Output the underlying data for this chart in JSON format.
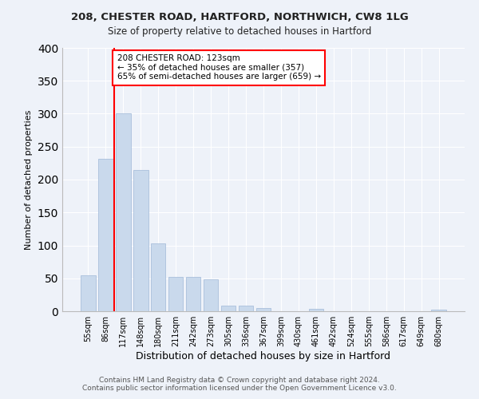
{
  "title1": "208, CHESTER ROAD, HARTFORD, NORTHWICH, CW8 1LG",
  "title2": "Size of property relative to detached houses in Hartford",
  "xlabel": "Distribution of detached houses by size in Hartford",
  "ylabel": "Number of detached properties",
  "bar_color": "#c9d9ec",
  "bar_edge_color": "#a0b8d8",
  "categories": [
    "55sqm",
    "86sqm",
    "117sqm",
    "148sqm",
    "180sqm",
    "211sqm",
    "242sqm",
    "273sqm",
    "305sqm",
    "336sqm",
    "367sqm",
    "399sqm",
    "430sqm",
    "461sqm",
    "492sqm",
    "524sqm",
    "555sqm",
    "586sqm",
    "617sqm",
    "649sqm",
    "680sqm"
  ],
  "values": [
    54,
    232,
    300,
    215,
    103,
    52,
    52,
    48,
    9,
    8,
    5,
    0,
    0,
    4,
    0,
    0,
    0,
    0,
    0,
    0,
    2
  ],
  "ylim": [
    0,
    400
  ],
  "yticks": [
    0,
    50,
    100,
    150,
    200,
    250,
    300,
    350,
    400
  ],
  "vline_x": 1.5,
  "annotation_text": "208 CHESTER ROAD: 123sqm\n← 35% of detached houses are smaller (357)\n65% of semi-detached houses are larger (659) →",
  "annotation_box_color": "white",
  "annotation_box_edge_color": "red",
  "vline_color": "red",
  "bg_color": "#eef2f9",
  "footer1": "Contains HM Land Registry data © Crown copyright and database right 2024.",
  "footer2": "Contains public sector information licensed under the Open Government Licence v3.0."
}
